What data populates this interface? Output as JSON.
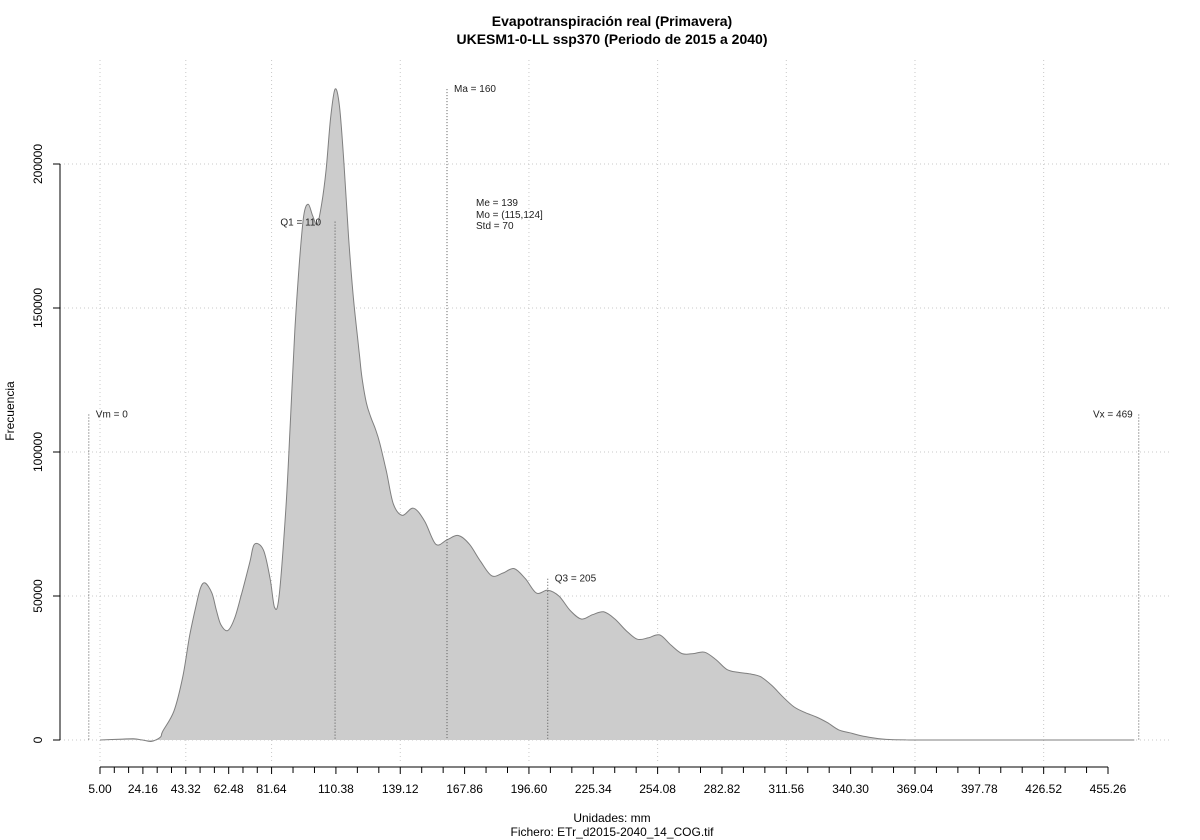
{
  "chart_data": {
    "type": "area",
    "title": "Evapotranspiración real (Primavera)",
    "subtitle": "UKESM1-0-LL ssp370 (Periodo de 2015 a 2040)",
    "xlabel": "Unidades: mm",
    "ylabel": "Frecuencia",
    "caption": "Fichero: ETr_d2015-2040_14_COG.tif",
    "xlim": [
      -2,
      478
    ],
    "ylim": [
      0,
      228000
    ],
    "x_ticks": [
      5.0,
      24.16,
      43.32,
      62.48,
      81.64,
      110.38,
      139.12,
      167.86,
      196.6,
      225.34,
      254.08,
      282.82,
      311.56,
      340.3,
      369.04,
      397.78,
      426.52,
      455.26
    ],
    "x_tick_labels": [
      "5.00",
      "24.16",
      "43.32",
      "62.48",
      "81.64",
      "110.38",
      "139.12",
      "167.86",
      "196.60",
      "225.34",
      "254.08",
      "282.82",
      "311.56",
      "340.30",
      "369.04",
      "397.78",
      "426.52",
      "455.26"
    ],
    "y_ticks": [
      0,
      50000,
      100000,
      150000,
      200000
    ],
    "y_tick_labels": [
      "0",
      "50000",
      "100000",
      "150000",
      "200000"
    ],
    "grid": true,
    "fill_color": "#cccccc",
    "line_color": "#7f7f7f",
    "series": [
      {
        "x": [
          5,
          15,
          20,
          24,
          28,
          32,
          33,
          38,
          42,
          45,
          48,
          50,
          52,
          55,
          57,
          59,
          62,
          65,
          68,
          72,
          74,
          78,
          81,
          83,
          85,
          88,
          90,
          92,
          94,
          96,
          98,
          100,
          102,
          104,
          106,
          108,
          110,
          112,
          114,
          116,
          118,
          120,
          121,
          122,
          124,
          126,
          128,
          130,
          133,
          136,
          140,
          145,
          150,
          155,
          160,
          165,
          170,
          175,
          180,
          185,
          190,
          195,
          200,
          205,
          210,
          215,
          220,
          225,
          230,
          235,
          240,
          245,
          250,
          255,
          260,
          265,
          270,
          275,
          280,
          285,
          290,
          295,
          300,
          305,
          310,
          315,
          320,
          325,
          330,
          335,
          340,
          345,
          350,
          355,
          360,
          365,
          370,
          380,
          390,
          400,
          420,
          440,
          460,
          467
        ],
        "y": [
          0,
          300,
          400,
          0,
          -500,
          1000,
          3000,
          10000,
          22000,
          36000,
          47000,
          53000,
          54500,
          51000,
          45000,
          40000,
          38000,
          42000,
          50000,
          62000,
          68000,
          66000,
          56000,
          46000,
          50000,
          80000,
          110000,
          142000,
          165000,
          182000,
          186000,
          182000,
          179000,
          186000,
          198000,
          216000,
          226000,
          220000,
          200000,
          175000,
          155000,
          140000,
          133000,
          126000,
          117000,
          112000,
          108000,
          103000,
          93000,
          82000,
          78000,
          80500,
          76000,
          68000,
          69500,
          71000,
          68000,
          62000,
          57000,
          58000,
          59500,
          56000,
          51000,
          52000,
          50000,
          45000,
          42000,
          43500,
          44500,
          42000,
          38000,
          35000,
          35500,
          36500,
          33000,
          30000,
          30000,
          30500,
          28000,
          24500,
          23500,
          23000,
          22000,
          19000,
          15000,
          11500,
          9500,
          8000,
          6000,
          3500,
          2500,
          1500,
          800,
          300,
          100,
          50,
          0,
          0,
          0,
          0,
          0,
          0,
          0,
          0
        ]
      }
    ],
    "annotations": [
      {
        "label": "Vm = 0",
        "x": 0,
        "top": 113000
      },
      {
        "label": "Q1 = 110",
        "x": 110,
        "top": 180000
      },
      {
        "label": "Ma = 160",
        "x": 160,
        "top": 226000
      },
      {
        "label": "Q3 = 205",
        "x": 205,
        "top": 56000
      },
      {
        "label": "Vx = 469",
        "x": 469,
        "top": 113000
      }
    ],
    "stats": [
      "Me = 139",
      "Mo = (115,124]",
      "Std = 70"
    ]
  }
}
